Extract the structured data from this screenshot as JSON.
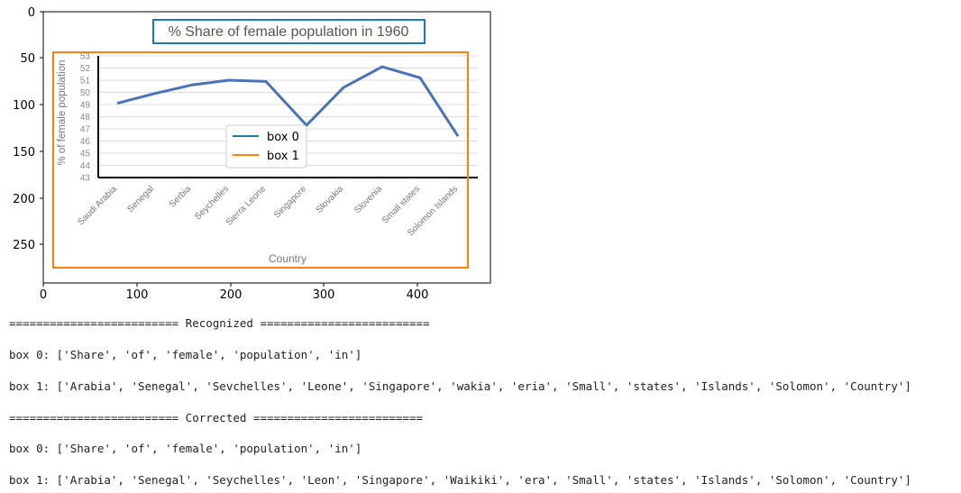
{
  "axes": {
    "x_ticks": [
      "0",
      "100",
      "200",
      "300",
      "400"
    ],
    "y_ticks": [
      "0",
      "50",
      "100",
      "150",
      "200",
      "250"
    ]
  },
  "chart_data": {
    "type": "line",
    "title": "% Share of female population in 1960",
    "xlabel": "Country",
    "ylabel": "% of female population",
    "categories": [
      "Saudi Arabia",
      "Senegal",
      "Serbia",
      "Seychelles",
      "Sierra Leone",
      "Singapore",
      "Slovakia",
      "Slovenia",
      "Small states",
      "Solomon Islands"
    ],
    "series": [
      {
        "values": [
          49.1,
          49.9,
          50.6,
          51.0,
          50.9,
          47.3,
          50.4,
          52.1,
          51.2,
          46.4
        ]
      }
    ],
    "ylim": [
      43,
      53
    ],
    "yticks": [
      "43",
      "44",
      "45",
      "46",
      "47",
      "48",
      "49",
      "50",
      "51",
      "52",
      "53"
    ],
    "line_color": "#4a72b6",
    "grid": true
  },
  "legend": {
    "items": [
      {
        "label": "box 0",
        "color": "#1f77b4"
      },
      {
        "label": "box 1",
        "color": "#ff7f0e"
      }
    ]
  },
  "output": {
    "recognized_header": "========================= Recognized =========================",
    "recognized_box0": "box 0: ['Share', 'of', 'female', 'population', 'in']",
    "recognized_box1": "box 1: ['Arabia', 'Senegal', 'Sevchelles', 'Leone', 'Singapore', 'wakia', 'eria', 'Small', 'states', 'Islands', 'Solomon', 'Country']",
    "corrected_header": "========================= Corrected =========================",
    "corrected_box0": "box 0: ['Share', 'of', 'female', 'population', 'in']",
    "corrected_box1": "box 1: ['Arabia', 'Senegal', 'Seychelles', 'Leon', 'Singapore', 'Waikiki', 'era', 'Small', 'states', 'Islands', 'Solomon', 'Country']"
  }
}
